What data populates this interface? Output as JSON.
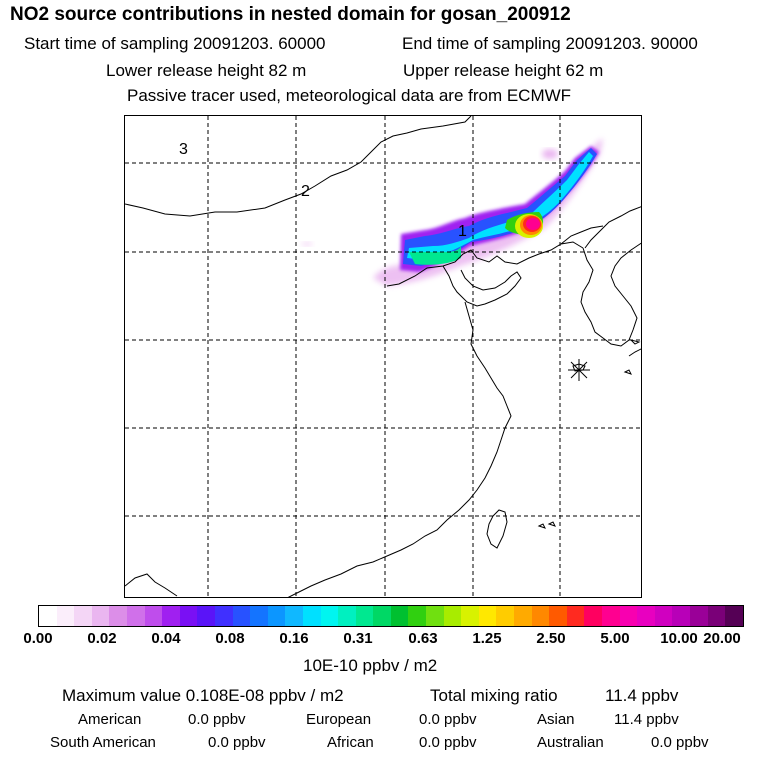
{
  "header": {
    "title": "NO2 source contributions in nested domain for gosan_200912",
    "start_label": "Start time of sampling 20091203. 60000",
    "end_label": "End time of sampling 20091203. 90000",
    "lower_label": "Lower release height   82 m",
    "upper_label": "Upper release height   62 m",
    "info": "Passive tracer used, meteorological data are from ECMWF"
  },
  "map": {
    "labels": [
      "3",
      "2",
      "1"
    ],
    "receptor_icon": "asterisk-marker-icon"
  },
  "colorbar": {
    "ticks": [
      "0.00",
      "0.02",
      "0.04",
      "0.08",
      "0.16",
      "0.31",
      "0.63",
      "1.25",
      "2.50",
      "5.00",
      "10.00",
      "20.00"
    ],
    "unit": "10E-10 ppbv / m2",
    "colors": [
      "#ffffff",
      "#fbeefb",
      "#f4d6f6",
      "#eab6f0",
      "#dc8ee8",
      "#d070ea",
      "#bf4dec",
      "#a020f0",
      "#7a10f4",
      "#5a14f8",
      "#4030ff",
      "#2852ff",
      "#1474ff",
      "#0c96ff",
      "#10b8ff",
      "#00e0ff",
      "#00f5f0",
      "#00f0c0",
      "#00e890",
      "#00d865",
      "#00c030",
      "#30d010",
      "#70e010",
      "#a8ec00",
      "#d8f200",
      "#ffe800",
      "#ffcc00",
      "#ffaa00",
      "#ff8800",
      "#ff5a00",
      "#ff2a20",
      "#ff0060",
      "#ff0090",
      "#f800b0",
      "#e800c0",
      "#d000c0",
      "#b800b8",
      "#9a0098",
      "#7a0078",
      "#550055"
    ]
  },
  "footer": {
    "max_label": "Maximum value  0.108E-08 ppbv / m2",
    "total_label": "Total mixing ratio",
    "total_value": "11.4 ppbv",
    "regions": [
      {
        "name": "American",
        "value": "0.0 ppbv"
      },
      {
        "name": "European",
        "value": "0.0 ppbv"
      },
      {
        "name": "Asian",
        "value": "11.4 ppbv"
      },
      {
        "name": "South American",
        "value": "0.0 ppbv"
      },
      {
        "name": "African",
        "value": "0.0 ppbv"
      },
      {
        "name": "Australian",
        "value": "0.0 ppbv"
      }
    ]
  }
}
